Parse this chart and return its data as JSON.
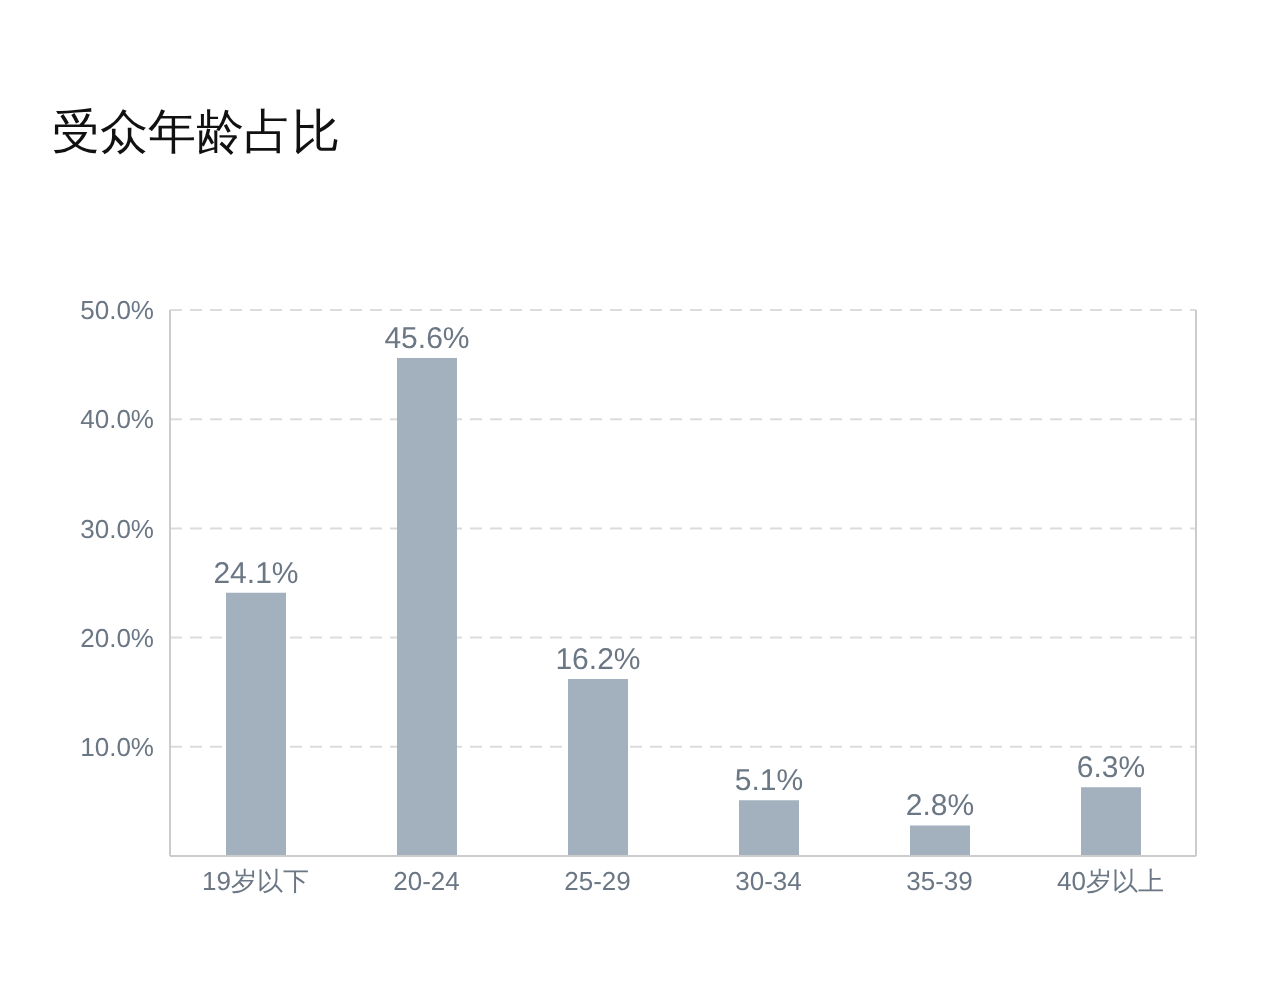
{
  "chart_data": {
    "type": "bar",
    "title": "受众年龄占比",
    "categories": [
      "19岁以下",
      "20-24",
      "25-29",
      "30-34",
      "35-39",
      "40岁以上"
    ],
    "values": [
      24.1,
      45.6,
      16.2,
      5.1,
      2.8,
      6.3
    ],
    "value_labels": [
      "24.1%",
      "45.6%",
      "16.2%",
      "5.1%",
      "2.8%",
      "6.3%"
    ],
    "color": "#a3b0bd",
    "ylim": [
      0,
      50
    ],
    "yticks": [
      {
        "value": 0,
        "label": null
      },
      {
        "value": 10,
        "label": "10.0%"
      },
      {
        "value": 20,
        "label": "20.0%"
      },
      {
        "value": 30,
        "label": "30.0%"
      },
      {
        "value": 40,
        "label": "40.0%"
      },
      {
        "value": 50,
        "label": "50.0%"
      }
    ],
    "grid": "y"
  }
}
